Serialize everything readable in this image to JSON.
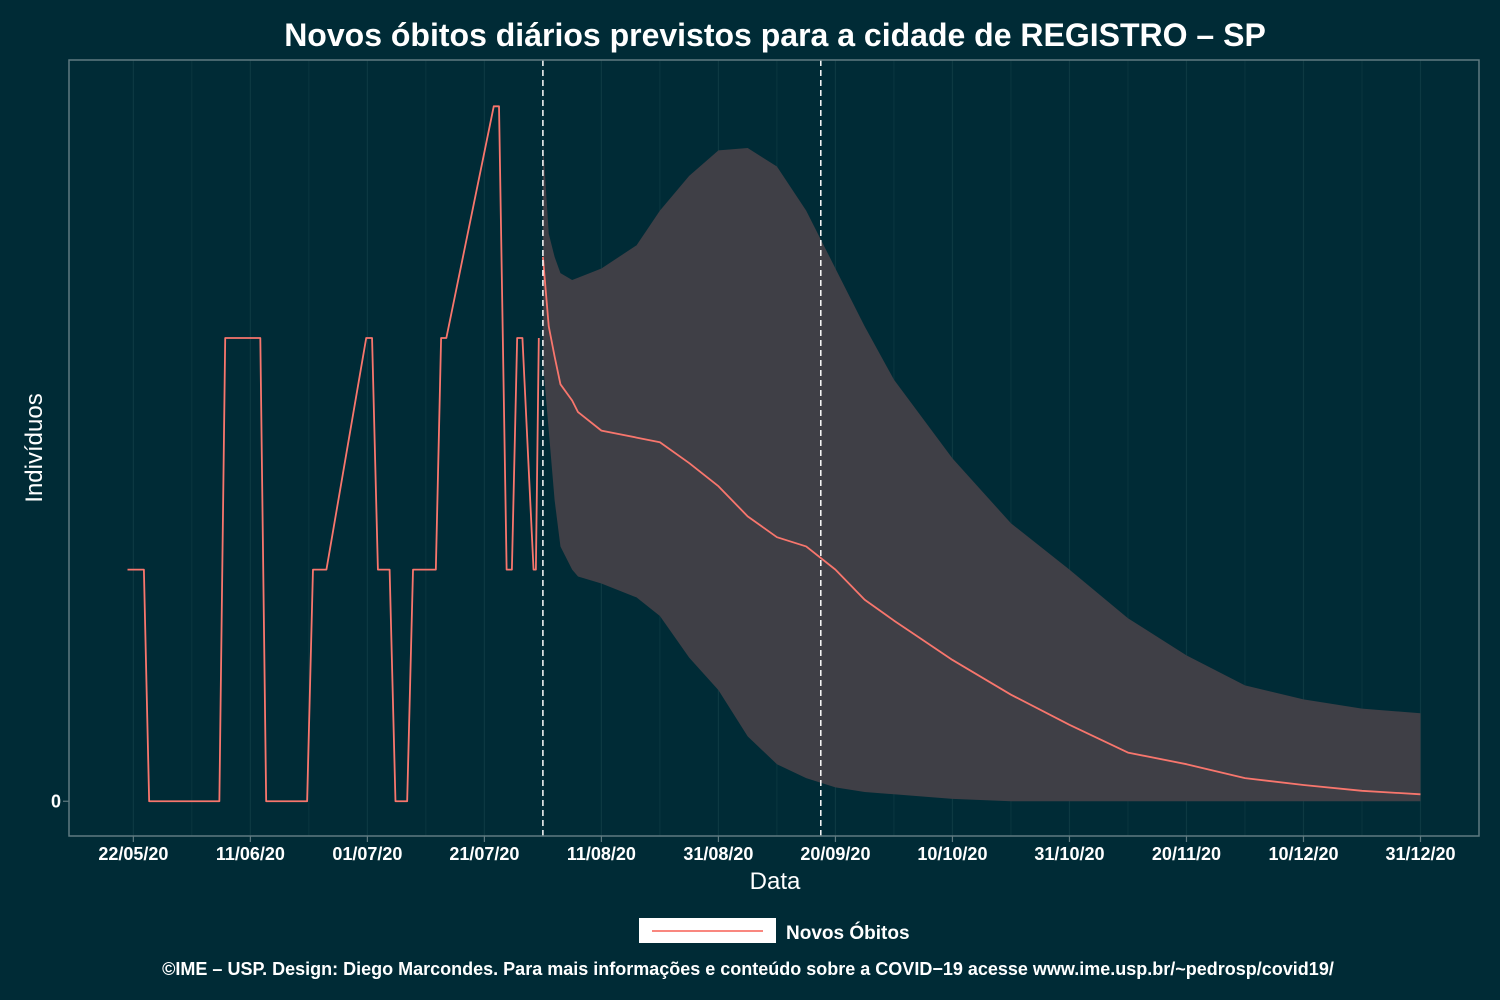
{
  "chart_data": {
    "type": "line",
    "title": "Novos óbitos diários previstos para a cidade de REGISTRO – SP",
    "xlabel": "Data",
    "ylabel": "Indivíduos",
    "x_tick_labels": [
      "22/05/20",
      "11/06/20",
      "01/07/20",
      "21/07/20",
      "11/08/20",
      "31/08/20",
      "20/09/20",
      "10/10/20",
      "31/10/20",
      "20/11/20",
      "10/12/20",
      "31/12/20"
    ],
    "x_tick_days": [
      0,
      20,
      40,
      60,
      80,
      100,
      120,
      140,
      160,
      180,
      200,
      220
    ],
    "y_tick_labels": [
      "0"
    ],
    "y_tick_values": [
      0
    ],
    "ylim": [
      -0.15,
      3.2
    ],
    "xlim": [
      -11,
      230
    ],
    "vlines_day": [
      70,
      117.5
    ],
    "grid": true,
    "legend": {
      "position": "bottom",
      "entries": [
        "Novos Óbitos"
      ]
    },
    "colors": {
      "line": "#f8766d",
      "band": "#3f3f46",
      "background": "#002b36",
      "grid": "#0d3942",
      "border": "#5f7a80"
    },
    "observed": {
      "name": "Novos Óbitos",
      "x": [
        -1.0,
        1.8,
        2.7,
        14.7,
        15.7,
        21.7,
        22.7,
        23.7,
        29.7,
        30.7,
        33.0,
        39.8,
        40.8,
        41.8,
        43.8,
        44.8,
        46.8,
        47.8,
        51.7,
        52.6,
        53.5,
        61.6,
        62.5,
        63.8,
        64.7,
        65.6,
        66.5,
        68.4,
        68.8,
        69.3
      ],
      "y": [
        1,
        1,
        0,
        0,
        2,
        2,
        0,
        0,
        0,
        1,
        1,
        2,
        2,
        1,
        1,
        0,
        0,
        1,
        1,
        2,
        2,
        3,
        3,
        1,
        1,
        2,
        2,
        1,
        1,
        2
      ]
    },
    "forecast": {
      "name": "Novos Óbitos",
      "x": [
        70,
        71,
        72,
        73,
        75,
        76,
        80,
        86,
        90,
        95,
        100,
        105,
        110,
        115,
        120,
        125,
        130,
        140,
        150,
        160,
        170,
        180,
        190,
        200,
        210,
        220
      ],
      "mean": [
        2.35,
        2.05,
        1.92,
        1.8,
        1.73,
        1.68,
        1.6,
        1.57,
        1.55,
        1.46,
        1.36,
        1.23,
        1.14,
        1.1,
        1.0,
        0.87,
        0.78,
        0.61,
        0.46,
        0.33,
        0.21,
        0.16,
        0.1,
        0.07,
        0.045,
        0.03
      ],
      "lower": [
        1.9,
        1.6,
        1.3,
        1.1,
        1.0,
        0.97,
        0.94,
        0.88,
        0.8,
        0.62,
        0.48,
        0.28,
        0.16,
        0.1,
        0.06,
        0.04,
        0.03,
        0.01,
        0.0,
        0.0,
        0.0,
        0.0,
        0.0,
        0.0,
        0.0,
        0.0
      ],
      "upper": [
        2.85,
        2.45,
        2.35,
        2.28,
        2.25,
        2.26,
        2.3,
        2.4,
        2.55,
        2.7,
        2.81,
        2.82,
        2.74,
        2.55,
        2.3,
        2.05,
        1.82,
        1.48,
        1.2,
        1.0,
        0.79,
        0.63,
        0.5,
        0.44,
        0.4,
        0.38
      ]
    }
  },
  "caption": "©IME – USP. Design: Diego Marcondes. Para mais informações e conteúdo sobre a COVID−19 acesse www.ime.usp.br/~pedrosp/covid19/"
}
